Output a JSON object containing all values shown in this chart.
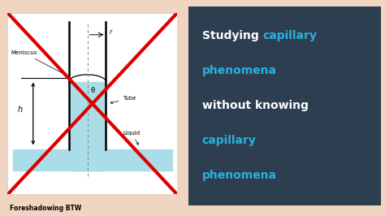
{
  "bg_color": "#f0d5c0",
  "left_panel_bg": "#ffffff",
  "dark_navy": "#2d3e50",
  "white_color": "#ffffff",
  "cyan_color": "#2ab0de",
  "red_color": "#dd0000",
  "light_blue": "#aadde8",
  "caption": "Foreshadowing BTW",
  "label_tube": "Tube",
  "label_liquid": "Liquid",
  "label_meniscus": "Meniscus",
  "label_theta": "θ",
  "label_r": "r",
  "label_h": "h",
  "line1_white": "Studying ",
  "line1_cyan": "capillary",
  "line2_cyan": "phenomena",
  "line3_white": "without knowing",
  "line4_cyan": "capillary",
  "line5_cyan": "phenomena"
}
